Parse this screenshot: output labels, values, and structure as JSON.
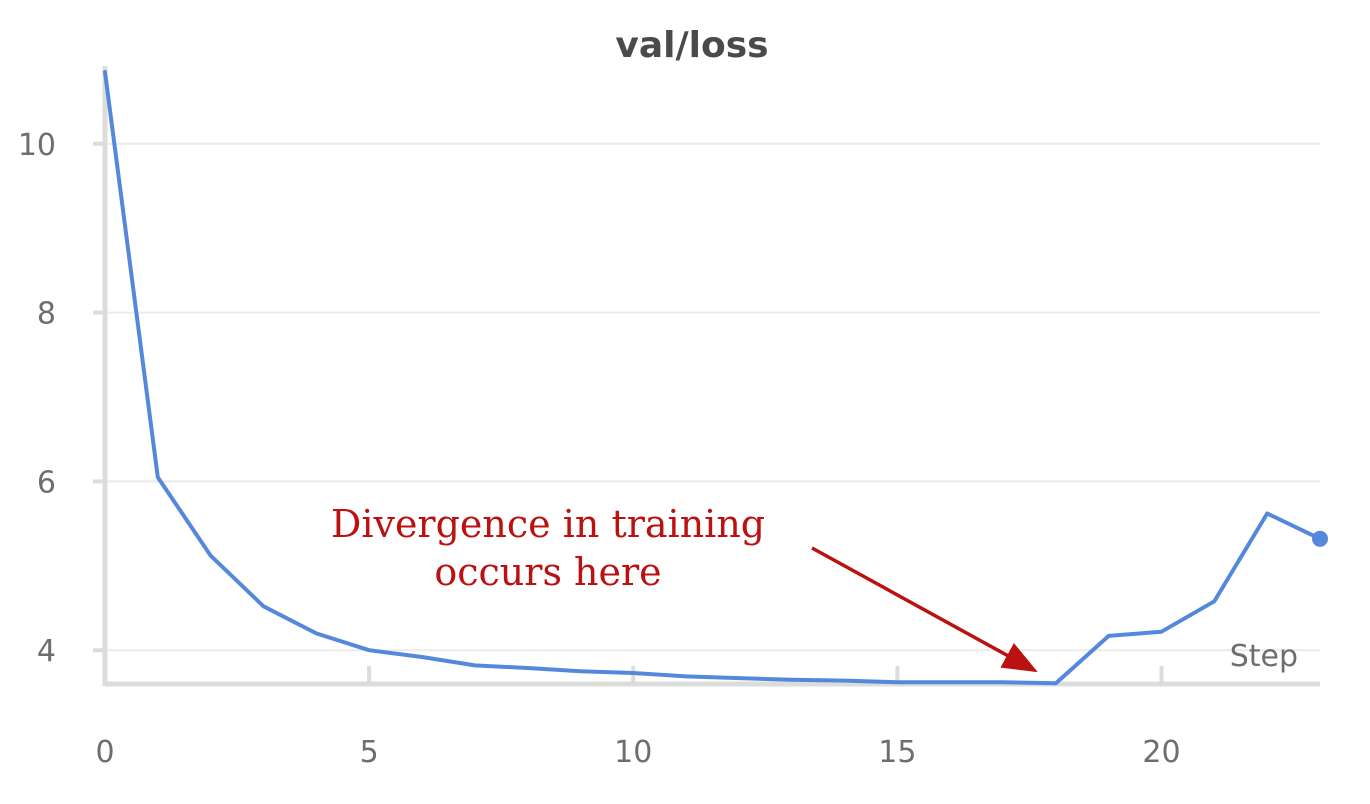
{
  "chart_data": {
    "type": "line",
    "title": "val/loss",
    "xlabel": "Step",
    "ylabel": "",
    "xlim": [
      0,
      23
    ],
    "ylim": [
      3.6,
      10.85
    ],
    "x_ticks": [
      0,
      5,
      10,
      15,
      20
    ],
    "y_ticks": [
      4,
      6,
      8,
      10
    ],
    "grid": true,
    "series": [
      {
        "color": "#5588dd",
        "x": [
          0,
          1,
          2,
          3,
          4,
          5,
          6,
          7,
          8,
          9,
          10,
          11,
          12,
          13,
          14,
          15,
          16,
          17,
          18,
          19,
          20,
          21,
          22,
          23
        ],
        "y": [
          10.85,
          6.05,
          5.12,
          4.52,
          4.2,
          4.0,
          3.92,
          3.82,
          3.79,
          3.75,
          3.73,
          3.69,
          3.67,
          3.65,
          3.64,
          3.62,
          3.62,
          3.62,
          3.61,
          4.17,
          4.22,
          4.58,
          5.62,
          5.32
        ]
      }
    ],
    "annotations": [
      {
        "lines": [
          "Divergence in training",
          "occurs here"
        ],
        "color": "#bb1111",
        "points_to": {
          "x": 17.6,
          "y": 3.76
        }
      }
    ]
  }
}
